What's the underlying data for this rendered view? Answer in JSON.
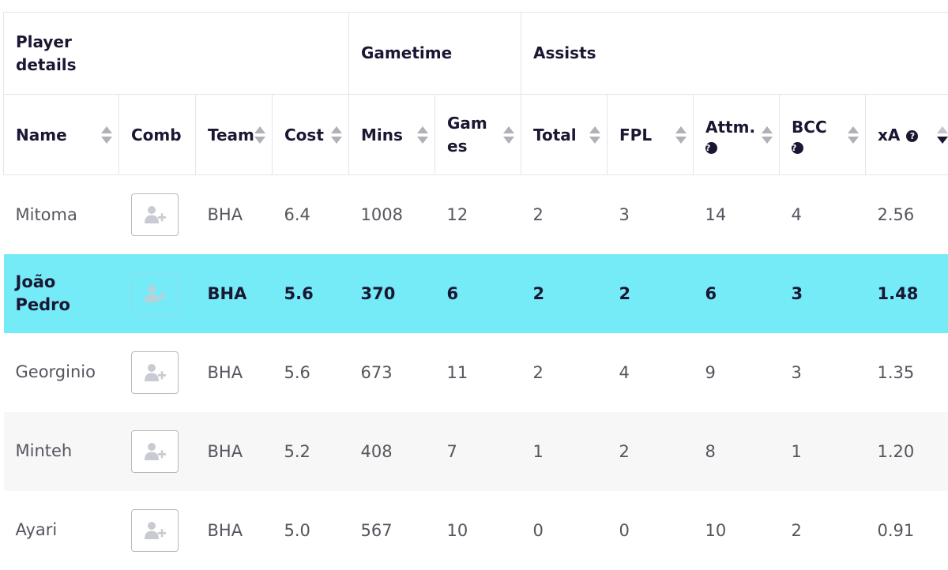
{
  "group_headers": {
    "player_details": "Player details",
    "gametime": "Gametime",
    "assists": "Assists"
  },
  "columns": {
    "name": "Name",
    "comb": "Comb",
    "team": "Team",
    "cost": "Cost",
    "mins": "Mins",
    "games": "Games",
    "total": "Total",
    "fpl": "FPL",
    "attm": "Attm.",
    "bcc": "BCC",
    "xa": "xA"
  },
  "help_icon": "?",
  "icons": {
    "sort": "sort-arrows-icon",
    "help": "question-circle-icon",
    "add_to_comparison": "add-user-icon"
  },
  "colors": {
    "selected_row": "#75ebf8",
    "header_text": "#1a1733",
    "cell_text": "#55555e",
    "alt_row": "#f7f7f7"
  },
  "sort": {
    "column": "xA",
    "direction": "descending"
  },
  "rows": [
    {
      "name": "Mitoma",
      "team": "BHA",
      "cost": "6.4",
      "mins": "1008",
      "games": "12",
      "total": "2",
      "fpl": "3",
      "attm": "14",
      "bcc": "4",
      "xa": "2.56"
    },
    {
      "name": "João Pedro",
      "team": "BHA",
      "cost": "5.6",
      "mins": "370",
      "games": "6",
      "total": "2",
      "fpl": "2",
      "attm": "6",
      "bcc": "3",
      "xa": "1.48",
      "selected": true
    },
    {
      "name": "Georginio",
      "team": "BHA",
      "cost": "5.6",
      "mins": "673",
      "games": "11",
      "total": "2",
      "fpl": "4",
      "attm": "9",
      "bcc": "3",
      "xa": "1.35"
    },
    {
      "name": "Minteh",
      "team": "BHA",
      "cost": "5.2",
      "mins": "408",
      "games": "7",
      "total": "1",
      "fpl": "2",
      "attm": "8",
      "bcc": "1",
      "xa": "1.20"
    },
    {
      "name": "Ayari",
      "team": "BHA",
      "cost": "5.0",
      "mins": "567",
      "games": "10",
      "total": "0",
      "fpl": "0",
      "attm": "10",
      "bcc": "2",
      "xa": "0.91"
    }
  ]
}
